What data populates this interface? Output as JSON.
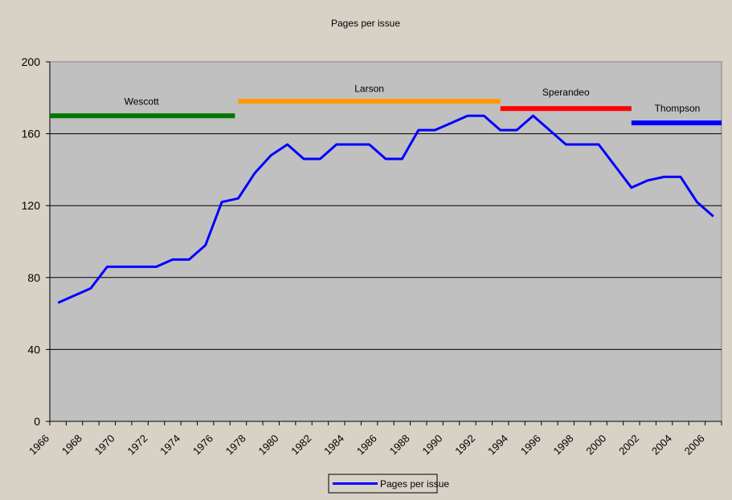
{
  "chart_data": {
    "type": "line",
    "title": "Pages per issue",
    "xlabel": "",
    "ylabel": "",
    "xlim": [
      1966,
      2007
    ],
    "ylim": [
      0,
      200
    ],
    "yticks": [
      0,
      40,
      80,
      120,
      160,
      200
    ],
    "xticks": [
      1966,
      1968,
      1970,
      1972,
      1974,
      1976,
      1978,
      1980,
      1982,
      1984,
      1986,
      1988,
      1990,
      1992,
      1994,
      1996,
      1998,
      2000,
      2002,
      2004,
      2006
    ],
    "grid": "horizontal",
    "legend_position": "bottom-center",
    "plot_background": "#c0c0c0",
    "series": [
      {
        "name": "Pages per issue",
        "color": "#0000ff",
        "x": [
          1966.5,
          1967.5,
          1968.5,
          1969.5,
          1970.5,
          1971.5,
          1972.5,
          1973.5,
          1974.5,
          1975.5,
          1976.5,
          1977.5,
          1978.5,
          1979.5,
          1980.5,
          1981.5,
          1982.5,
          1983.5,
          1984.5,
          1985.5,
          1986.5,
          1987.5,
          1988.5,
          1989.5,
          1990.5,
          1991.5,
          1992.5,
          1993.5,
          1994.5,
          1995.5,
          1996.5,
          1997.5,
          1998.5,
          1999.5,
          2000.5,
          2001.5,
          2002.5,
          2003.5,
          2004.5,
          2005.5,
          2006.5
        ],
        "values": [
          66,
          70,
          74,
          86,
          86,
          86,
          86,
          90,
          90,
          98,
          122,
          124,
          138,
          148,
          154,
          146,
          146,
          154,
          154,
          154,
          146,
          146,
          162,
          162,
          166,
          170,
          170,
          162,
          162,
          170,
          162,
          154,
          154,
          154,
          142,
          130,
          134,
          136,
          136,
          122,
          114
        ]
      }
    ],
    "editor_bars": [
      {
        "name": "Wescott",
        "start": 1966,
        "end": 1977.3,
        "y": 170,
        "color": "#007700",
        "label_year": 1971.6,
        "label_y": 178
      },
      {
        "name": "Larson",
        "start": 1977.5,
        "end": 1993.5,
        "y": 178,
        "color": "#ff9900",
        "label_year": 1985.5,
        "label_y": 185
      },
      {
        "name": "Sperandeo",
        "start": 1993.5,
        "end": 2001.5,
        "y": 174,
        "color": "#ff0000",
        "label_year": 1997.5,
        "label_y": 183
      },
      {
        "name": "Thompson",
        "start": 2001.5,
        "end": 2007,
        "y": 166,
        "color": "#0000ff",
        "label_year": 2004.3,
        "label_y": 174
      }
    ]
  }
}
